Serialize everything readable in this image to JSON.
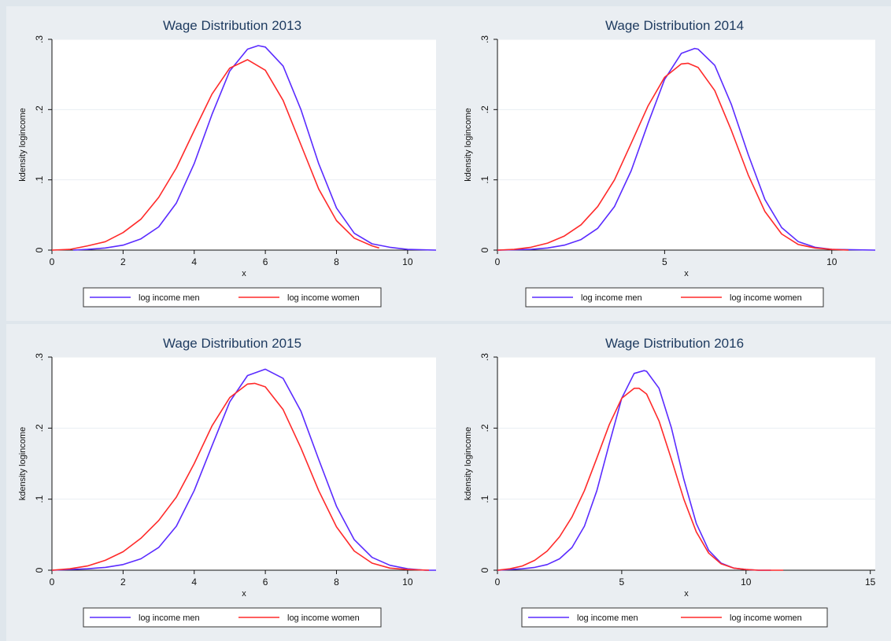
{
  "colors": {
    "men": "#5a2bff",
    "women": "#ff2a2a",
    "panel_bg": "#eaeef2",
    "plot_bg": "#ffffff",
    "grid": "#eaeef2"
  },
  "chart_data": [
    {
      "type": "line",
      "title": "Wage Distribution 2013",
      "xlabel": "x",
      "ylabel": "kdensity logincome",
      "xlim": [
        0,
        10.8
      ],
      "ylim": [
        0,
        0.3
      ],
      "xticks": [
        "0",
        "2",
        "4",
        "6",
        "8",
        "10"
      ],
      "yticks": [
        "0",
        ".1",
        ".2",
        ".3"
      ],
      "grid": true,
      "legend": "bottom",
      "series": [
        {
          "name": "log income men",
          "x": [
            0.6,
            1.0,
            1.5,
            2.0,
            2.5,
            3.0,
            3.5,
            4.0,
            4.5,
            5.0,
            5.5,
            5.8,
            6.0,
            6.5,
            7.0,
            7.5,
            8.0,
            8.5,
            9.0,
            9.5,
            10.0,
            10.8
          ],
          "y": [
            0.0,
            0.001,
            0.003,
            0.007,
            0.016,
            0.033,
            0.067,
            0.123,
            0.193,
            0.255,
            0.286,
            0.291,
            0.289,
            0.262,
            0.2,
            0.123,
            0.06,
            0.024,
            0.009,
            0.004,
            0.001,
            0.0
          ]
        },
        {
          "name": "log income women",
          "x": [
            0.0,
            0.5,
            1.0,
            1.5,
            2.0,
            2.5,
            3.0,
            3.5,
            4.0,
            4.5,
            5.0,
            5.5,
            6.0,
            6.5,
            7.0,
            7.5,
            8.0,
            8.5,
            9.0,
            9.2
          ],
          "y": [
            0.0,
            0.001,
            0.006,
            0.012,
            0.025,
            0.044,
            0.075,
            0.117,
            0.17,
            0.222,
            0.259,
            0.271,
            0.256,
            0.213,
            0.15,
            0.087,
            0.042,
            0.017,
            0.006,
            0.003
          ]
        }
      ]
    },
    {
      "type": "line",
      "title": "Wage Distribution 2014",
      "xlabel": "x",
      "ylabel": "kdensity logincome",
      "xlim": [
        0,
        11.3
      ],
      "ylim": [
        0,
        0.3
      ],
      "xticks": [
        "0",
        "5",
        "10"
      ],
      "yticks": [
        "0",
        ".1",
        ".2",
        ".3"
      ],
      "grid": true,
      "legend": "bottom",
      "series": [
        {
          "name": "log income men",
          "x": [
            0.0,
            1.0,
            1.5,
            2.0,
            2.5,
            3.0,
            3.5,
            4.0,
            4.5,
            5.0,
            5.5,
            5.9,
            6.0,
            6.5,
            7.0,
            7.5,
            8.0,
            8.5,
            9.0,
            9.5,
            10.0,
            11.3
          ],
          "y": [
            0.0,
            0.001,
            0.003,
            0.007,
            0.015,
            0.031,
            0.062,
            0.113,
            0.18,
            0.243,
            0.28,
            0.287,
            0.286,
            0.263,
            0.207,
            0.136,
            0.072,
            0.032,
            0.012,
            0.004,
            0.001,
            0.0
          ]
        },
        {
          "name": "log income women",
          "x": [
            0.0,
            0.5,
            1.0,
            1.5,
            2.0,
            2.5,
            3.0,
            3.5,
            4.0,
            4.5,
            5.0,
            5.5,
            5.7,
            6.0,
            6.5,
            7.0,
            7.5,
            8.0,
            8.5,
            9.0,
            9.5,
            10.0,
            10.5
          ],
          "y": [
            0.0,
            0.001,
            0.004,
            0.01,
            0.02,
            0.036,
            0.062,
            0.1,
            0.152,
            0.205,
            0.246,
            0.265,
            0.266,
            0.26,
            0.227,
            0.17,
            0.107,
            0.055,
            0.023,
            0.008,
            0.003,
            0.001,
            0.0
          ]
        }
      ]
    },
    {
      "type": "line",
      "title": "Wage Distribution 2015",
      "xlabel": "x",
      "ylabel": "kdensity logincome",
      "xlim": [
        0,
        10.8
      ],
      "ylim": [
        0,
        0.3
      ],
      "xticks": [
        "0",
        "2",
        "4",
        "6",
        "8",
        "10"
      ],
      "yticks": [
        "0",
        ".1",
        ".2",
        ".3"
      ],
      "grid": true,
      "legend": "bottom",
      "series": [
        {
          "name": "log income men",
          "x": [
            0.0,
            1.0,
            1.5,
            2.0,
            2.5,
            3.0,
            3.5,
            4.0,
            4.5,
            5.0,
            5.5,
            6.0,
            6.5,
            7.0,
            7.5,
            8.0,
            8.5,
            9.0,
            9.5,
            10.0,
            10.5,
            10.8
          ],
          "y": [
            0.0,
            0.002,
            0.004,
            0.008,
            0.016,
            0.032,
            0.062,
            0.112,
            0.175,
            0.237,
            0.274,
            0.283,
            0.27,
            0.224,
            0.156,
            0.09,
            0.043,
            0.018,
            0.007,
            0.002,
            0.0,
            0.0
          ]
        },
        {
          "name": "log income women",
          "x": [
            0.0,
            0.5,
            1.0,
            1.5,
            2.0,
            2.5,
            3.0,
            3.5,
            4.0,
            4.5,
            5.0,
            5.5,
            5.7,
            6.0,
            6.5,
            7.0,
            7.5,
            8.0,
            8.5,
            9.0,
            9.5,
            10.0,
            10.6
          ],
          "y": [
            0.0,
            0.002,
            0.006,
            0.014,
            0.026,
            0.045,
            0.07,
            0.103,
            0.15,
            0.203,
            0.243,
            0.262,
            0.263,
            0.258,
            0.226,
            0.172,
            0.112,
            0.061,
            0.027,
            0.01,
            0.003,
            0.001,
            0.0
          ]
        }
      ]
    },
    {
      "type": "line",
      "title": "Wage Distribution 2016",
      "xlabel": "x",
      "ylabel": "kdensity logincome",
      "xlim": [
        0,
        15.2
      ],
      "ylim": [
        0,
        0.3
      ],
      "xticks": [
        "0",
        "5",
        "10",
        "15"
      ],
      "yticks": [
        "0",
        ".1",
        ".2",
        ".3"
      ],
      "grid": true,
      "legend": "bottom",
      "series": [
        {
          "name": "log income men",
          "x": [
            0.0,
            1.0,
            1.5,
            2.0,
            2.5,
            3.0,
            3.5,
            4.0,
            4.5,
            5.0,
            5.5,
            5.9,
            6.0,
            6.5,
            7.0,
            7.5,
            8.0,
            8.5,
            9.0,
            9.5,
            10.0,
            10.5,
            11.0
          ],
          "y": [
            0.0,
            0.002,
            0.004,
            0.008,
            0.016,
            0.032,
            0.062,
            0.112,
            0.178,
            0.242,
            0.277,
            0.281,
            0.28,
            0.256,
            0.2,
            0.128,
            0.066,
            0.028,
            0.01,
            0.003,
            0.001,
            0.0,
            0.0
          ]
        },
        {
          "name": "log income women",
          "x": [
            0.0,
            0.5,
            1.0,
            1.5,
            2.0,
            2.5,
            3.0,
            3.5,
            4.0,
            4.5,
            5.0,
            5.5,
            5.7,
            6.0,
            6.5,
            7.0,
            7.5,
            8.0,
            8.5,
            9.0,
            9.5,
            10.0,
            10.5,
            11.0,
            11.5
          ],
          "y": [
            0.0,
            0.002,
            0.006,
            0.014,
            0.027,
            0.047,
            0.075,
            0.112,
            0.158,
            0.205,
            0.242,
            0.256,
            0.256,
            0.248,
            0.21,
            0.156,
            0.1,
            0.054,
            0.024,
            0.009,
            0.003,
            0.001,
            0.0,
            0.0,
            0.0
          ]
        }
      ]
    }
  ]
}
